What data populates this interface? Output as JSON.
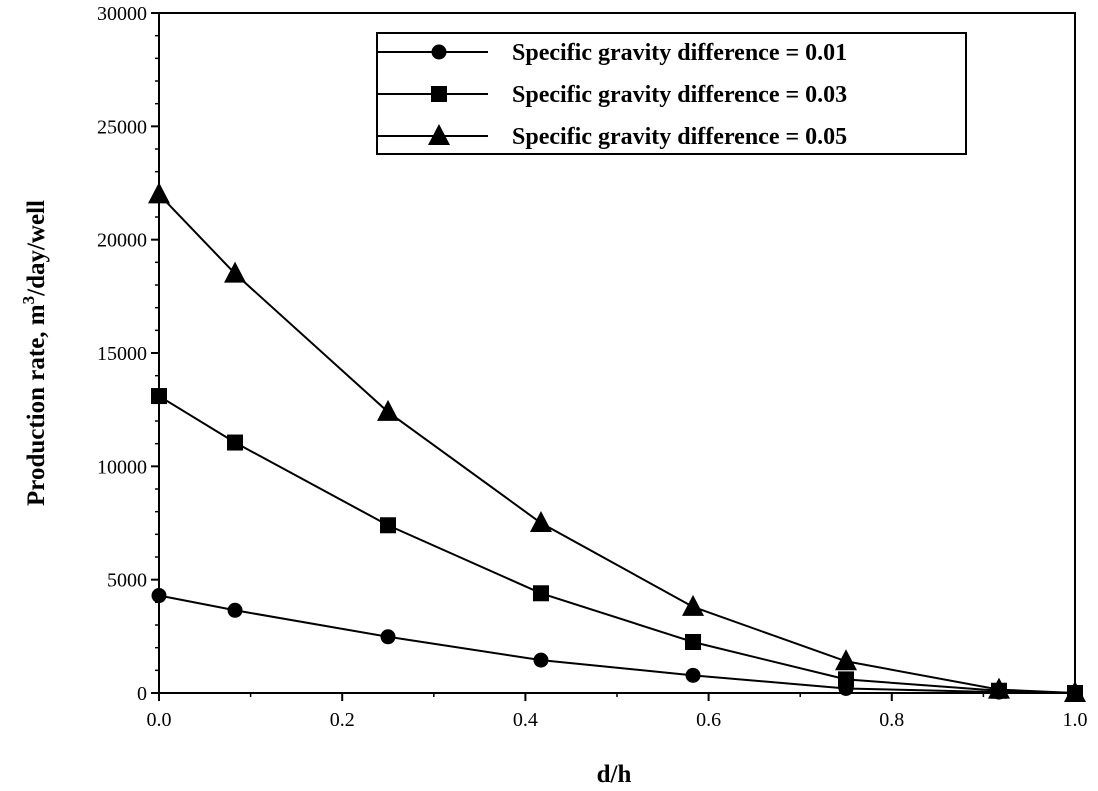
{
  "chart_data": {
    "type": "line",
    "xlabel": "d/h",
    "ylabel": "Production rate, m",
    "ylabel_sup": "3",
    "ylabel_tail": "/day/well",
    "xlim": [
      0.0,
      1.0
    ],
    "ylim": [
      0,
      30000
    ],
    "x_ticks": [
      0.0,
      0.2,
      0.4,
      0.6,
      0.8,
      1.0
    ],
    "x_tick_labels": [
      "0.0",
      "0.2",
      "0.4",
      "0.6",
      "0.8",
      "1.0"
    ],
    "y_ticks": [
      0,
      5000,
      10000,
      15000,
      20000,
      25000,
      30000
    ],
    "y_tick_labels": [
      "0",
      "5000",
      "10000",
      "15000",
      "20000",
      "25000",
      "30000"
    ],
    "grid": false,
    "legend_position": "top-right",
    "x": [
      0.0,
      0.083,
      0.25,
      0.417,
      0.583,
      0.75,
      0.917,
      1.0
    ],
    "series": [
      {
        "name": "Specific gravity difference = 0.01",
        "marker": "circle",
        "values": [
          4300,
          3650,
          2480,
          1450,
          780,
          200,
          40,
          0
        ]
      },
      {
        "name": "Specific gravity difference = 0.03",
        "marker": "square",
        "values": [
          13100,
          11050,
          7400,
          4400,
          2250,
          600,
          100,
          0
        ]
      },
      {
        "name": "Specific gravity difference = 0.05",
        "marker": "triangle",
        "values": [
          22000,
          18500,
          12400,
          7500,
          3800,
          1400,
          150,
          0
        ]
      }
    ],
    "colors": {
      "line": "#000000",
      "marker": "#000000",
      "background": "#ffffff"
    }
  }
}
